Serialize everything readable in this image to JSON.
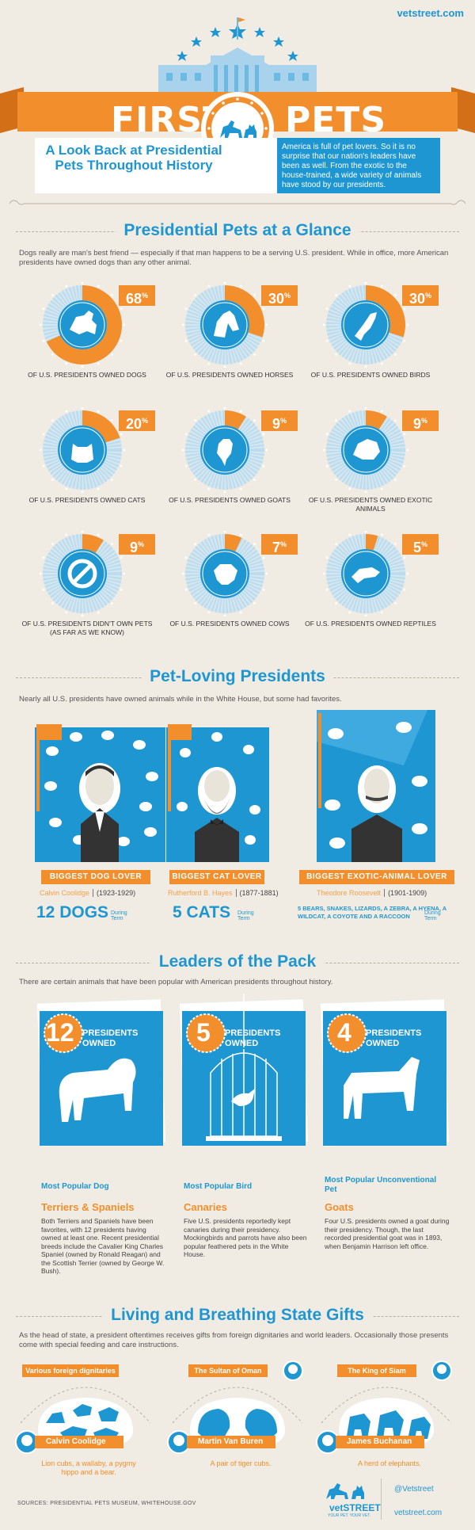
{
  "header": {
    "site_url": "vetstreet.com",
    "title_first": "FIRST",
    "title_pets": "PETS",
    "subtitle": "A Look Back at Presidential Pets Throughout History",
    "intro": "America is full of pet lovers. So it is no surprise that our nation's leaders have been as well. From the exotic to the house-trained, a wide variety of animals have stood by our presidents."
  },
  "glance": {
    "title": "Presidential Pets at a Glance",
    "description": "Dogs really are man's best friend — especially if that man happens to be a serving U.S. president. While in office, more American presidents have owned dogs than any other animal.",
    "stats": [
      {
        "pct": 68,
        "caption": "OF U.S. PRESIDENTS OWNED DOGS",
        "icon": "dog-icon"
      },
      {
        "pct": 30,
        "caption": "OF U.S. PRESIDENTS OWNED HORSES",
        "icon": "horse-icon"
      },
      {
        "pct": 30,
        "caption": "OF U.S. PRESIDENTS OWNED BIRDS",
        "icon": "bird-icon"
      },
      {
        "pct": 20,
        "caption": "OF U.S. PRESIDENTS OWNED CATS",
        "icon": "cat-icon"
      },
      {
        "pct": 9,
        "caption": "OF U.S. PRESIDENTS OWNED GOATS",
        "icon": "goat-icon"
      },
      {
        "pct": 9,
        "caption": "OF U.S. PRESIDENTS OWNED EXOTIC ANIMALS",
        "icon": "exotic-animal-icon"
      },
      {
        "pct": 9,
        "caption": "OF U.S. PRESIDENTS DIDN'T OWN PETS (AS FAR AS WE KNOW)",
        "icon": "no-pets-icon"
      },
      {
        "pct": 7,
        "caption": "OF U.S. PRESIDENTS OWNED COWS",
        "icon": "cow-icon"
      },
      {
        "pct": 5,
        "caption": "OF U.S. PRESIDENTS OWNED REPTILES",
        "icon": "reptile-icon"
      }
    ],
    "pct_suffix": "%"
  },
  "presidents": {
    "title": "Pet-Loving Presidents",
    "description": "Nearly all U.S. presidents have owned animals while in the White House, but some had favorites.",
    "cards": [
      {
        "badge": "BIGGEST DOG LOVER",
        "name": "Calvin Coolidge",
        "years": "(1923-1929)",
        "count": "12 DOGS",
        "term": "During Term"
      },
      {
        "badge": "BIGGEST CAT LOVER",
        "name": "Rutherford B. Hayes",
        "years": "(1877-1881)",
        "count": "5 CATS",
        "term": "During Term"
      },
      {
        "badge": "BIGGEST EXOTIC-ANIMAL LOVER",
        "name": "Theodore Roosevelt",
        "years": "(1901-1909)",
        "count": "5 BEARS, SNAKES, LIZARDS, A ZEBRA, A HYENA, A WILDCAT, A COYOTE AND A RACCOON",
        "term": "During Term"
      }
    ]
  },
  "leaders": {
    "title": "Leaders of the Pack",
    "description": "There are certain animals that have been popular with American presidents throughout history.",
    "owned_label": "PRESIDENTS",
    "owned_label2": "OWNED",
    "items": [
      {
        "num": "12",
        "popular": "Most Popular Dog",
        "head": "Terriers & Spaniels",
        "body": "Both Terriers and Spaniels have been favorites, with 12 presidents having owned at least one. Recent presidential breeds include the Cavalier King Charles Spaniel (owned by Ronald Reagan) and the Scottish Terrier (owned by George W. Bush)."
      },
      {
        "num": "5",
        "popular": "Most Popular Bird",
        "head": "Canaries",
        "body": "Five U.S. presidents reportedly kept canaries during their presidency. Mockingbirds and parrots have also been popular feathered pets in the White House."
      },
      {
        "num": "4",
        "popular": "Most Popular Unconventional Pet",
        "head": "Goats",
        "body": "Four U.S. presidents owned a goat during their presidency. Though, the last recorded presidential goat was in 1893, when Benjamin Harrison left office."
      }
    ]
  },
  "gifts": {
    "title": "Living and Breathing State Gifts",
    "description": "As the head of state, a president oftentimes receives gifts from foreign dignitaries and world leaders. Occasionally those presents come with special feeding and care instructions.",
    "items": [
      {
        "from": "Various foreign dignitaries",
        "president": "Calvin Coolidge",
        "gift": "Lion cubs, a wallaby, a pygmy hippo and a bear."
      },
      {
        "from": "The Sultan of Oman",
        "president": "Martin Van Buren",
        "gift": "A pair of tiger cubs."
      },
      {
        "from": "The King of Siam",
        "president": "James Buchanan",
        "gift": "A herd of elephants."
      }
    ]
  },
  "footer": {
    "sources": "SOURCES: PRESIDENTIAL PETS MUSEUM, WHITEHOUSE.GOV",
    "brand": "vetSTREET",
    "tagline": "YOUR PET. YOUR VET.",
    "twitter": "@Vetstreet",
    "url": "vetstreet.com"
  },
  "colors": {
    "blue": "#1e96d2",
    "orange": "#f28e2b",
    "light_blue": "#a9d3ec",
    "background": "#f1ece3"
  }
}
